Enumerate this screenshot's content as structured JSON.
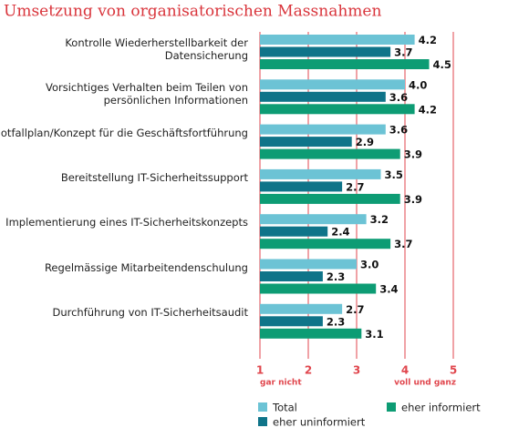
{
  "chart_data": {
    "type": "bar",
    "orientation": "horizontal",
    "title": "Umsetzung von organisatorischen Massnahmen",
    "categories": [
      "Kontrolle Wiederherstellbarkeit der Datensicherung",
      "Vorsichtiges Verhalten beim Teilen von\npersönlichen Informationen",
      "Notfallplan/Konzept für die Geschäftsfortführung",
      "Bereitstellung IT-Sicherheitssupport",
      "Implementierung eines IT-Sicherheitskonzepts",
      "Regelmässige Mitarbeitendenschulung",
      "Durchführung von IT-Sicherheitsaudit"
    ],
    "series": [
      {
        "name": "Total",
        "color": "#6cc3d5",
        "values": [
          4.2,
          4.0,
          3.6,
          3.5,
          3.2,
          3.0,
          2.7
        ],
        "value_labels": [
          "4.2",
          "4.0",
          "3.6",
          "3.5",
          "3.2",
          "3.0",
          "2.7"
        ]
      },
      {
        "name": "eher uninformiert",
        "color": "#0f7489",
        "values": [
          3.7,
          3.6,
          2.9,
          2.7,
          2.4,
          2.3,
          2.3
        ],
        "value_labels": [
          "3.7",
          "3.6",
          "2.9",
          "2.7",
          "2.4",
          "2.3",
          "2.3"
        ]
      },
      {
        "name": "eher informiert",
        "color": "#0d9c74",
        "values": [
          4.5,
          4.2,
          3.9,
          3.9,
          3.7,
          3.4,
          3.1
        ],
        "value_labels": [
          "4.5",
          "4.2",
          "3.9",
          "3.9",
          "3.7",
          "3.4",
          "3.1"
        ]
      }
    ],
    "xlim": [
      1,
      5
    ],
    "xticks": [
      1,
      2,
      3,
      4,
      5
    ],
    "grid": true,
    "grid_color": "#e0464d",
    "annotations": [
      "gar nicht",
      "voll und ganz"
    ]
  }
}
